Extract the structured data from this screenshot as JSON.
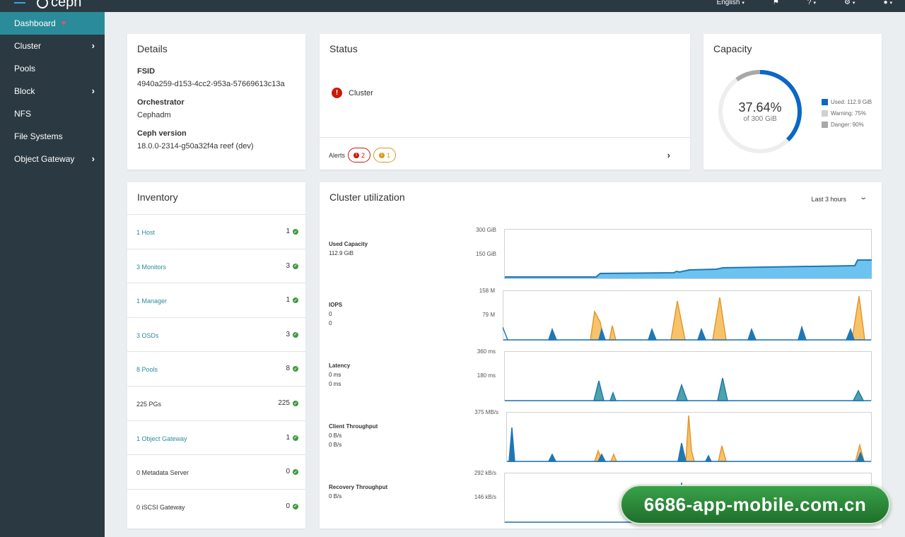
{
  "topbar": {
    "logo_text": "ceph",
    "language": "English",
    "caret": "▾"
  },
  "sidebar": {
    "items": [
      {
        "label": "Dashboard",
        "active": true
      },
      {
        "label": "Cluster",
        "submenu": true
      },
      {
        "label": "Pools"
      },
      {
        "label": "Block",
        "submenu": true
      },
      {
        "label": "NFS"
      },
      {
        "label": "File Systems"
      },
      {
        "label": "Object Gateway",
        "submenu": true
      }
    ]
  },
  "details": {
    "title": "Details",
    "fsid_label": "FSID",
    "fsid": "4940a259-d153-4cc2-953a-57669613c13a",
    "orchestrator_label": "Orchestrator",
    "orchestrator": "Cephadm",
    "version_label": "Ceph version",
    "version": "18.0.0-2314-g50a32f4a reef (dev)"
  },
  "status": {
    "title": "Status",
    "cluster_label": "Cluster",
    "alerts_label": "Alerts",
    "alerts_error_count": "2",
    "alerts_warning_count": "1"
  },
  "capacity": {
    "title": "Capacity",
    "percent": "37.64%",
    "of_total": "of 300 GiB",
    "used_fraction": 0.3764,
    "legend": {
      "used": "Used: 112.9 GiB",
      "warning": "Warning: 75%",
      "danger": "Danger: 90%"
    },
    "colors": {
      "used": "#0b67c8",
      "warning": "#d0d0d0",
      "danger": "#a8a8a8",
      "track": "#eeeeee"
    }
  },
  "inventory": {
    "title": "Inventory",
    "rows": [
      {
        "label": "1 Host",
        "count": "1",
        "link": true
      },
      {
        "label": "3 Monitors",
        "count": "3",
        "link": true
      },
      {
        "label": "1 Manager",
        "count": "1",
        "link": true
      },
      {
        "label": "3 OSDs",
        "count": "3",
        "link": true
      },
      {
        "label": "8 Pools",
        "count": "8",
        "link": true
      },
      {
        "label": "225 PGs",
        "count": "225",
        "link": false
      },
      {
        "label": "1 Object Gateway",
        "count": "1",
        "link": true
      },
      {
        "label": "0 Metadata Server",
        "count": "0",
        "link": false
      },
      {
        "label": "0 iSCSI Gateway",
        "count": "0",
        "link": false
      }
    ]
  },
  "utilization": {
    "title": "Cluster utilization",
    "time_range": "Last 3 hours",
    "metrics": [
      {
        "name": "Used Capacity",
        "values": [
          "112.9 GiB"
        ],
        "y_top": "300 GiB",
        "y_mid": "150 GiB"
      },
      {
        "name": "IOPS",
        "values": [
          "0",
          "0"
        ],
        "y_top": "158 M",
        "y_mid": "79 M"
      },
      {
        "name": "Latency",
        "values": [
          "0 ms",
          "0 ms"
        ],
        "y_top": "360 ms",
        "y_mid": "180 ms"
      },
      {
        "name": "Client Throughput",
        "values": [
          "0 B/s",
          "0 B/s"
        ],
        "y_top": "375 MB/s",
        "y_mid": ""
      },
      {
        "name": "Recovery Throughput",
        "values": [
          "0 B/s"
        ],
        "y_top": "292 kB/s",
        "y_mid": "146 kB/s"
      }
    ],
    "colors": {
      "blue": "#1f77b4",
      "blue_fill": "#6cc3ef",
      "orange": "#e8952b",
      "orange_fill": "#f5c46a"
    }
  },
  "watermark": "6686-app-mobile.com.cn"
}
